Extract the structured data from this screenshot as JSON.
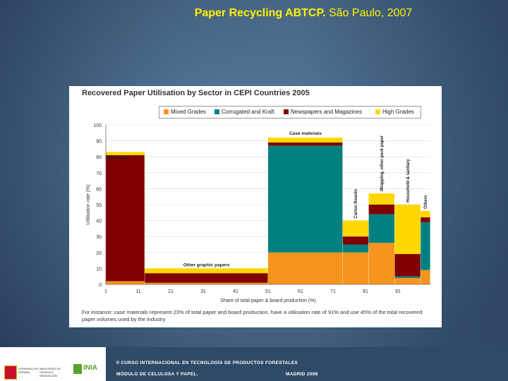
{
  "slide": {
    "title_bold": "Paper Recycling ABTCP.",
    "title_rest": " São Paulo, 2007"
  },
  "chart_data": {
    "type": "bar",
    "title": "Recovered Paper Utilisation by Sector in CEPI Countries 2005",
    "xlabel": "Share of total paper & board production (%)",
    "ylabel": "Utilisation rate (%)",
    "xlim": [
      1,
      101
    ],
    "ylim": [
      0,
      100
    ],
    "x_ticks": [
      1,
      11,
      21,
      31,
      41,
      51,
      61,
      71,
      81,
      91
    ],
    "y_ticks": [
      0,
      10,
      20,
      30,
      40,
      50,
      60,
      70,
      80,
      90,
      100
    ],
    "legend": {
      "placement": "top",
      "entries": [
        {
          "name": "Mixed Grades",
          "color": "#f7941d"
        },
        {
          "name": "Corrugated and Kraft",
          "color": "#008080"
        },
        {
          "name": "Newspapers and Magazines",
          "color": "#800000"
        },
        {
          "name": "High Grades",
          "color": "#ffd700"
        }
      ]
    },
    "sectors": [
      {
        "label": "Newsprint",
        "label_style": "top",
        "x_start": 1,
        "x_end": 13,
        "segments": [
          2,
          0,
          79,
          2
        ]
      },
      {
        "label": "Other graphic papers",
        "label_style": "inside",
        "x_start": 13,
        "x_end": 51,
        "segments": [
          1,
          0,
          6,
          3
        ]
      },
      {
        "label": "Case materials",
        "label_style": "top",
        "x_start": 51,
        "x_end": 74,
        "segments": [
          20,
          67,
          2,
          3
        ]
      },
      {
        "label": "Carton Boards",
        "label_style": "vertical",
        "x_start": 74,
        "x_end": 82,
        "segments": [
          20,
          5,
          5,
          10
        ]
      },
      {
        "label": "Wrapping, other pack paper",
        "label_style": "vertical",
        "x_start": 82,
        "x_end": 90,
        "segments": [
          26,
          18,
          6,
          7
        ]
      },
      {
        "label": "Household & sanitary",
        "label_style": "vertical",
        "x_start": 90,
        "x_end": 98,
        "segments": [
          4,
          1,
          14,
          31
        ]
      },
      {
        "label": "Others",
        "label_style": "vertical",
        "x_start": 98,
        "x_end": 101,
        "segments": [
          9,
          30,
          3,
          4
        ]
      }
    ],
    "footnote": "For instance: case materials represent 23% of total paper and board production, have a utilisation rate of 91% and use 45% of the total recovered paper volumes used by the industry"
  },
  "footer": {
    "line1": "II CURSO INTERNACIONAL EN TECNOLOGÍA DE PRODUCTOS FORESTALES",
    "line2": "MÓDULO DE CELULOSA Y PAPEL.",
    "line3": "MADRID 2008",
    "logo_gobierno": "GOBIERNO DE ESPAÑA",
    "logo_ministerio": "MINISTERIO DE CIENCIA E INNOVACIÓN",
    "logo_inia": "INIA"
  }
}
